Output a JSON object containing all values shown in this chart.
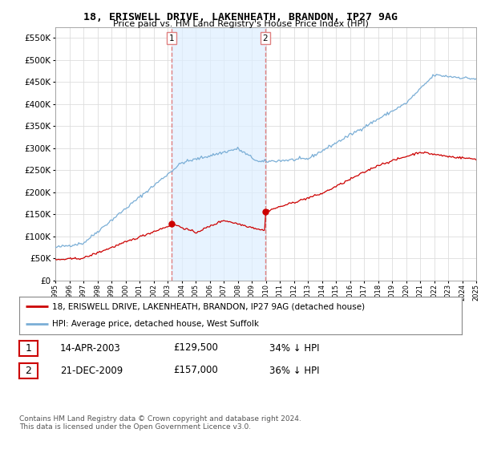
{
  "title": "18, ERISWELL DRIVE, LAKENHEATH, BRANDON, IP27 9AG",
  "subtitle": "Price paid vs. HM Land Registry's House Price Index (HPI)",
  "legend_line1": "18, ERISWELL DRIVE, LAKENHEATH, BRANDON, IP27 9AG (detached house)",
  "legend_line2": "HPI: Average price, detached house, West Suffolk",
  "footer": "Contains HM Land Registry data © Crown copyright and database right 2024.\nThis data is licensed under the Open Government Licence v3.0.",
  "table": [
    {
      "num": "1",
      "date": "14-APR-2003",
      "price": "£129,500",
      "hpi": "34% ↓ HPI"
    },
    {
      "num": "2",
      "date": "21-DEC-2009",
      "price": "£157,000",
      "hpi": "36% ↓ HPI"
    }
  ],
  "sale1_x": 2003.28,
  "sale1_y": 129500,
  "sale2_x": 2009.97,
  "sale2_y": 157000,
  "red_color": "#cc0000",
  "blue_color": "#7aaed6",
  "vline_color": "#e08080",
  "span_color": "#ddeeff",
  "background_plot": "#ffffff",
  "grid_color": "#dddddd",
  "ylim": [
    0,
    575000
  ],
  "xlim": [
    1995,
    2025
  ],
  "yticks": [
    0,
    50000,
    100000,
    150000,
    200000,
    250000,
    300000,
    350000,
    400000,
    450000,
    500000,
    550000
  ]
}
